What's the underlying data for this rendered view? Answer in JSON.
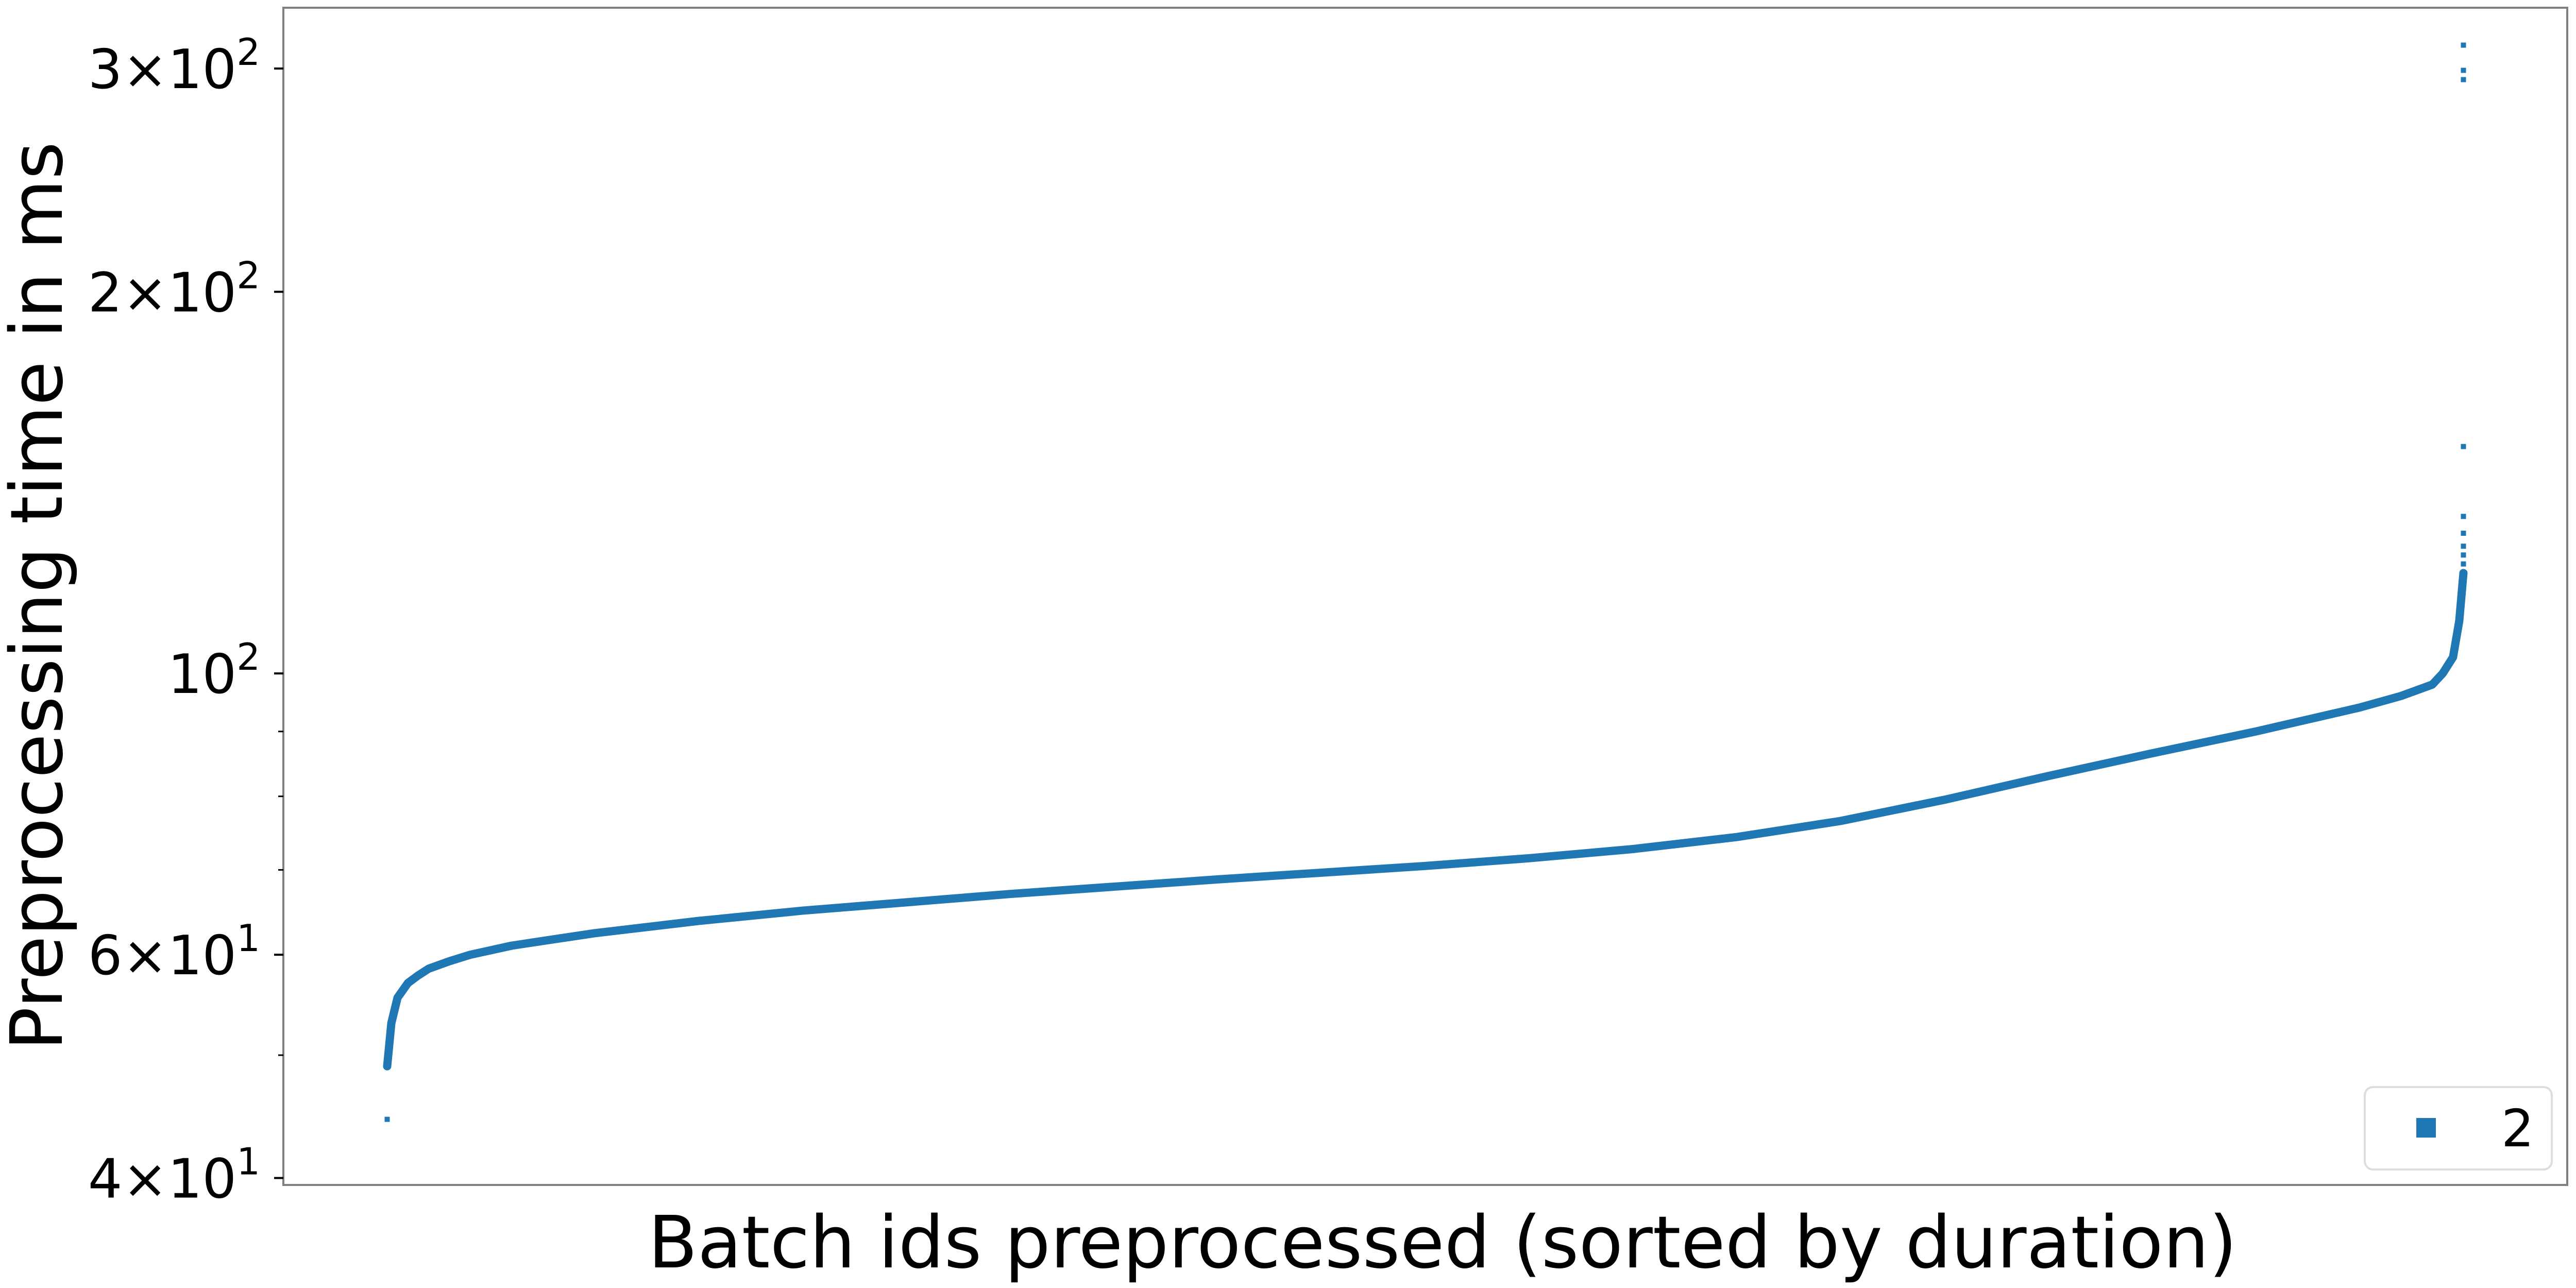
{
  "chart_data": {
    "type": "scatter",
    "xlabel": "Batch ids preprocessed (sorted by duration)",
    "ylabel": "Preprocessing time in ms",
    "yscale": "log",
    "ylim": [
      39.5,
      335
    ],
    "xlim": [
      -0.05,
      1.05
    ],
    "grid": false,
    "legend_placement": "bottom-right",
    "yticks": [
      {
        "value": 40,
        "base": "4",
        "times": "×",
        "mant": "10",
        "exp": "1"
      },
      {
        "value": 60,
        "base": "6",
        "times": "×",
        "mant": "10",
        "exp": "1"
      },
      {
        "value": 100,
        "base": "",
        "times": "",
        "mant": "10",
        "exp": "2"
      },
      {
        "value": 200,
        "base": "2",
        "times": "×",
        "mant": "10",
        "exp": "2"
      },
      {
        "value": 300,
        "base": "3",
        "times": "×",
        "mant": "10",
        "exp": "2"
      }
    ],
    "series": [
      {
        "name": "2",
        "color": "#1f77b4",
        "curve_fraction": [
          0.0,
          0.002,
          0.005,
          0.01,
          0.015,
          0.02,
          0.03,
          0.04,
          0.06,
          0.08,
          0.1,
          0.15,
          0.2,
          0.3,
          0.4,
          0.5,
          0.55,
          0.6,
          0.65,
          0.7,
          0.75,
          0.8,
          0.85,
          0.9,
          0.95,
          0.97,
          0.985,
          0.99,
          0.995,
          0.998,
          1.0
        ],
        "curve_values": [
          49,
          53,
          55.5,
          57,
          57.8,
          58.5,
          59.3,
          60,
          61,
          61.7,
          62.4,
          63.8,
          65,
          67,
          68.8,
          70.5,
          71.5,
          72.7,
          74.3,
          76.5,
          79.5,
          83,
          86.5,
          90,
          94,
          96,
          98,
          100,
          103,
          110,
          120
        ],
        "outliers": [
          {
            "x": 0.0,
            "y": 44.5
          },
          {
            "x": 1.0,
            "y": 122
          },
          {
            "x": 1.0,
            "y": 124
          },
          {
            "x": 1.0,
            "y": 126
          },
          {
            "x": 1.0,
            "y": 129
          },
          {
            "x": 1.0,
            "y": 133
          },
          {
            "x": 1.0,
            "y": 151
          },
          {
            "x": 1.0,
            "y": 294
          },
          {
            "x": 1.0,
            "y": 299
          },
          {
            "x": 1.0,
            "y": 313
          }
        ]
      }
    ]
  }
}
